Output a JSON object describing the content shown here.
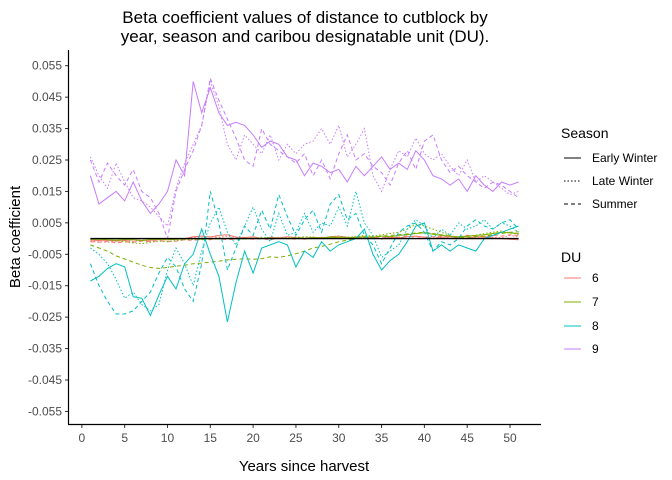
{
  "chart_data": {
    "type": "line",
    "title_lines": [
      "Beta coefficient values of distance to cutblock by",
      "year, season and caribou designatable unit (DU)."
    ],
    "xlabel": "Years since harvest",
    "ylabel": "Beta coefficient",
    "xlim": [
      -1.5,
      53.5
    ],
    "ylim": [
      -0.059,
      0.06
    ],
    "x_ticks": [
      0,
      5,
      10,
      15,
      20,
      25,
      30,
      35,
      40,
      45,
      50
    ],
    "y_ticks": [
      -0.055,
      -0.045,
      -0.035,
      -0.025,
      -0.015,
      -0.005,
      0.005,
      0.015,
      0.025,
      0.035,
      0.045,
      0.055
    ],
    "y_tick_labels": [
      "-0.055",
      "-0.045",
      "-0.035",
      "-0.025",
      "-0.015",
      "-0.005",
      "0.005",
      "0.015",
      "0.025",
      "0.035",
      "0.045",
      "0.055"
    ],
    "grid": false,
    "legend_position": "right",
    "legends": {
      "season": {
        "title": "Season",
        "entries": [
          {
            "label": "Early Winter",
            "linetype": "solid"
          },
          {
            "label": "Late Winter",
            "linetype": "dotted"
          },
          {
            "label": "Summer",
            "linetype": "dashed"
          }
        ]
      },
      "du": {
        "title": "DU",
        "entries": [
          {
            "label": "6",
            "color": "#F8766D"
          },
          {
            "label": "7",
            "color": "#7CAE00"
          },
          {
            "label": "8",
            "color": "#00BFC4"
          },
          {
            "label": "9",
            "color": "#C77CFF"
          }
        ]
      }
    },
    "x": [
      1,
      2,
      3,
      4,
      5,
      6,
      7,
      8,
      9,
      10,
      11,
      12,
      13,
      14,
      15,
      16,
      17,
      18,
      19,
      20,
      21,
      22,
      23,
      24,
      25,
      26,
      27,
      28,
      29,
      30,
      31,
      32,
      33,
      34,
      35,
      36,
      37,
      38,
      39,
      40,
      41,
      42,
      43,
      44,
      45,
      46,
      47,
      48,
      49,
      50,
      51
    ],
    "series": [
      {
        "du": "6",
        "season": "Early Winter",
        "color": "#F8766D",
        "linetype": "solid",
        "values": [
          -0.0005,
          -0.0006,
          -0.0005,
          -0.0008,
          -0.0006,
          -0.0004,
          -0.0006,
          -0.0005,
          -0.0003,
          -0.0004,
          -0.0002,
          0.0,
          0.0006,
          0.0008,
          0.0005,
          0.001,
          0.0012,
          0.0005,
          0.0003,
          0.0006,
          0.0,
          0.0004,
          0.0002,
          0.0006,
          0.0003,
          -0.0002,
          0.0004,
          0.0002,
          0.0006,
          0.0008,
          0.0004,
          0.0002,
          0.0006,
          0.0003,
          0.0,
          0.0004,
          0.0002,
          0.0006,
          0.0008,
          0.0004,
          0.0,
          0.0004,
          0.0006,
          0.0002,
          0.0,
          0.0006,
          0.0004,
          0.0002,
          0.0,
          -0.0002,
          -0.0004
        ]
      },
      {
        "du": "6",
        "season": "Late Winter",
        "color": "#F8766D",
        "linetype": "dotted",
        "values": [
          -0.0008,
          -0.001,
          -0.0012,
          -0.0008,
          -0.0006,
          -0.001,
          -0.0004,
          -0.0008,
          -0.0002,
          0.0002,
          -0.0004,
          0.0,
          0.0004,
          0.0002,
          0.0006,
          0.0004,
          0.0008,
          0.0002,
          0.0004,
          0.0,
          0.0002,
          -0.0002,
          0.0004,
          0.0,
          0.0006,
          0.0002,
          0.0004,
          0.0,
          0.0002,
          0.0004,
          0.0,
          0.0006,
          0.0002,
          0.0004,
          -0.0002,
          0.0002,
          0.0004,
          0.0,
          0.0008,
          0.0004,
          0.0002,
          0.0006,
          0.0,
          0.0004,
          0.0006,
          0.0002,
          0.0008,
          0.0004,
          0.0002,
          0.001,
          0.0006
        ]
      },
      {
        "du": "6",
        "season": "Summer",
        "color": "#F8766D",
        "linetype": "dashed",
        "values": [
          -0.001,
          -0.0012,
          -0.0008,
          -0.0014,
          -0.001,
          -0.0012,
          -0.0008,
          -0.001,
          -0.0006,
          -0.001,
          -0.0008,
          -0.0004,
          -0.0006,
          -0.0002,
          -0.0004,
          0.0,
          -0.0004,
          -0.0002,
          0.0002,
          -0.0002,
          0.0,
          -0.0004,
          0.0002,
          0.0,
          -0.0002,
          0.0002,
          0.0,
          0.0004,
          0.0002,
          0.0,
          0.0004,
          0.0002,
          0.0006,
          0.0004,
          0.0002,
          0.0006,
          0.0004,
          0.0008,
          0.0006,
          0.0004,
          0.0006,
          0.0008,
          0.0004,
          0.0006,
          0.001,
          0.0008,
          0.0006,
          0.001,
          0.0008,
          0.0012,
          0.001
        ]
      },
      {
        "du": "7",
        "season": "Early Winter",
        "color": "#7CAE00",
        "linetype": "solid",
        "values": [
          -0.0003,
          -0.0002,
          -0.0004,
          -0.0005,
          -0.0003,
          -0.0004,
          -0.0006,
          -0.0003,
          -0.0002,
          -0.0004,
          -0.0002,
          -0.0001,
          0.0,
          -0.0002,
          0.0,
          -0.0001,
          0.0001,
          0.0,
          -0.0001,
          0.0001,
          0.0,
          0.0002,
          0.0001,
          0.0,
          0.0002,
          0.0001,
          0.0003,
          0.0002,
          0.0004,
          0.0003,
          0.0002,
          0.0004,
          0.0006,
          0.0004,
          0.0008,
          0.0006,
          0.001,
          0.0012,
          0.0016,
          0.0018,
          0.0014,
          0.001,
          0.0008,
          0.0006,
          0.0008,
          0.001,
          0.0012,
          0.0016,
          0.002,
          0.0018,
          0.0016
        ]
      },
      {
        "du": "7",
        "season": "Late Winter",
        "color": "#7CAE00",
        "linetype": "dotted",
        "values": [
          -0.0002,
          0.0,
          -0.0004,
          -0.0006,
          -0.001,
          -0.0014,
          -0.0016,
          -0.0012,
          -0.0008,
          -0.001,
          -0.0006,
          -0.0004,
          -0.0002,
          -0.0004,
          0.0,
          0.0002,
          0.0,
          -0.0002,
          0.0002,
          0.0,
          0.0004,
          0.0002,
          0.0,
          0.0004,
          0.0002,
          0.0006,
          0.0004,
          0.0002,
          0.0006,
          0.0008,
          0.0004,
          0.0006,
          0.001,
          0.0008,
          0.0012,
          0.0016,
          0.002,
          0.003,
          0.0045,
          0.004,
          0.003,
          0.002,
          0.001,
          0.0,
          0.0006,
          0.001,
          0.0016,
          0.002,
          0.0024,
          0.0018,
          0.0014
        ]
      },
      {
        "du": "7",
        "season": "Summer",
        "color": "#7CAE00",
        "linetype": "dashed",
        "values": [
          -0.002,
          -0.003,
          -0.004,
          -0.0055,
          -0.0065,
          -0.0075,
          -0.0085,
          -0.0092,
          -0.0095,
          -0.0092,
          -0.0088,
          -0.0085,
          -0.008,
          -0.0078,
          -0.0075,
          -0.0072,
          -0.0068,
          -0.0066,
          -0.0064,
          -0.0066,
          -0.0064,
          -0.0058,
          -0.006,
          -0.0055,
          -0.0048,
          -0.004,
          -0.003,
          -0.0025,
          -0.0018,
          -0.001,
          -0.0005,
          0.0,
          0.0004,
          0.0006,
          0.0008,
          0.001,
          0.0012,
          0.0015,
          0.0018,
          0.002,
          0.0016,
          0.0012,
          0.0008,
          0.0004,
          0.0002,
          0.0006,
          0.0008,
          0.0012,
          0.0016,
          0.002,
          0.0022
        ]
      },
      {
        "du": "8",
        "season": "Early Winter",
        "color": "#00BFC4",
        "linetype": "solid",
        "values": [
          -0.0135,
          -0.012,
          -0.0095,
          -0.008,
          -0.009,
          -0.0185,
          -0.019,
          -0.0245,
          -0.018,
          -0.012,
          -0.016,
          -0.008,
          -0.005,
          0.003,
          -0.005,
          -0.012,
          -0.0265,
          -0.014,
          -0.004,
          -0.011,
          -0.003,
          -0.002,
          -0.001,
          -0.002,
          -0.009,
          -0.004,
          -0.006,
          -0.001,
          -0.004,
          -0.002,
          -0.001,
          0.0,
          0.003,
          -0.005,
          -0.01,
          -0.007,
          -0.005,
          -0.001,
          0.004,
          0.005,
          -0.004,
          -0.002,
          -0.004,
          -0.002,
          -0.003,
          -0.004,
          0.0,
          0.001,
          0.002,
          0.003,
          0.004
        ]
      },
      {
        "du": "8",
        "season": "Late Winter",
        "color": "#00BFC4",
        "linetype": "dotted",
        "values": [
          -0.003,
          -0.005,
          -0.008,
          -0.013,
          -0.019,
          -0.017,
          -0.021,
          -0.023,
          -0.021,
          -0.01,
          -0.003,
          -0.008,
          -0.015,
          -0.004,
          0.005,
          0.01,
          0.002,
          -0.002,
          0.004,
          0.01,
          0.003,
          -0.001,
          0.008,
          0.001,
          0.002,
          0.008,
          0.002,
          0.005,
          0.004,
          0.01,
          0.004,
          0.015,
          0.005,
          0.001,
          -0.006,
          -0.004,
          -0.002,
          0.003,
          0.006,
          0.004,
          0.0,
          0.003,
          0.001,
          0.005,
          0.003,
          0.004,
          0.006,
          0.003,
          0.005,
          0.004,
          0.002
        ]
      },
      {
        "du": "8",
        "season": "Summer",
        "color": "#00BFC4",
        "linetype": "dashed",
        "values": [
          -0.008,
          -0.015,
          -0.02,
          -0.024,
          -0.024,
          -0.023,
          -0.02,
          -0.017,
          -0.011,
          -0.006,
          -0.009,
          -0.016,
          -0.02,
          -0.008,
          0.015,
          0.005,
          -0.01,
          -0.003,
          0.004,
          0.001,
          0.009,
          0.003,
          0.014,
          0.007,
          0.001,
          0.006,
          0.009,
          0.002,
          0.011,
          0.014,
          0.006,
          0.008,
          0.001,
          -0.002,
          -0.008,
          -0.003,
          0.002,
          0.004,
          0.005,
          0.002,
          -0.004,
          -0.001,
          -0.002,
          0.0,
          0.004,
          0.006,
          0.004,
          0.003,
          0.005,
          0.006,
          0.003
        ]
      },
      {
        "du": "9",
        "season": "Early Winter",
        "color": "#C77CFF",
        "linetype": "solid",
        "values": [
          0.02,
          0.011,
          0.013,
          0.015,
          0.012,
          0.018,
          0.012,
          0.008,
          0.011,
          0.015,
          0.025,
          0.02,
          0.05,
          0.04,
          0.048,
          0.04,
          0.036,
          0.037,
          0.036,
          0.033,
          0.029,
          0.031,
          0.03,
          0.026,
          0.025,
          0.02,
          0.024,
          0.023,
          0.021,
          0.022,
          0.018,
          0.023,
          0.02,
          0.023,
          0.026,
          0.022,
          0.024,
          0.022,
          0.028,
          0.025,
          0.02,
          0.019,
          0.017,
          0.019,
          0.015,
          0.02,
          0.017,
          0.015,
          0.018,
          0.017,
          0.018
        ]
      },
      {
        "du": "9",
        "season": "Late Winter",
        "color": "#C77CFF",
        "linetype": "dotted",
        "values": [
          0.026,
          0.02,
          0.016,
          0.024,
          0.018,
          0.013,
          0.012,
          0.01,
          0.007,
          0.004,
          0.016,
          0.024,
          0.03,
          0.036,
          0.05,
          0.042,
          0.03,
          0.025,
          0.033,
          0.03,
          0.027,
          0.033,
          0.025,
          0.03,
          0.027,
          0.03,
          0.031,
          0.035,
          0.03,
          0.036,
          0.026,
          0.03,
          0.035,
          0.02,
          0.015,
          0.022,
          0.028,
          0.026,
          0.032,
          0.027,
          0.025,
          0.027,
          0.023,
          0.02,
          0.025,
          0.018,
          0.02,
          0.018,
          0.016,
          0.014,
          0.015
        ]
      },
      {
        "du": "9",
        "season": "Summer",
        "color": "#C77CFF",
        "linetype": "dashed",
        "values": [
          0.025,
          0.018,
          0.024,
          0.02,
          0.017,
          0.022,
          0.015,
          0.013,
          0.008,
          0.0,
          0.015,
          0.022,
          0.028,
          0.036,
          0.051,
          0.044,
          0.038,
          0.032,
          0.025,
          0.023,
          0.035,
          0.03,
          0.028,
          0.026,
          0.024,
          0.027,
          0.02,
          0.025,
          0.019,
          0.027,
          0.033,
          0.025,
          0.027,
          0.023,
          0.021,
          0.017,
          0.024,
          0.028,
          0.022,
          0.031,
          0.033,
          0.025,
          0.021,
          0.023,
          0.02,
          0.018,
          0.016,
          0.018,
          0.017,
          0.015,
          0.013
        ]
      }
    ]
  }
}
